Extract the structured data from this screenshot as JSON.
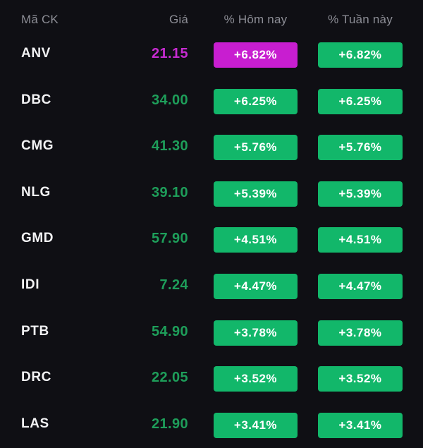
{
  "header": {
    "symbol": "Mã CK",
    "price": "Giá",
    "today": "% Hôm nay",
    "week": "% Tuần này"
  },
  "colors": {
    "up": "#12b76a",
    "up_text": "#1e9e5a",
    "ceiling": "#c81ed0",
    "ceiling_text": "#c62bd0"
  },
  "stocks": [
    {
      "symbol": "ANV",
      "price": "21.15",
      "today": "+6.82%",
      "week": "+6.82%",
      "status": "ceiling"
    },
    {
      "symbol": "DBC",
      "price": "34.00",
      "today": "+6.25%",
      "week": "+6.25%",
      "status": "up"
    },
    {
      "symbol": "CMG",
      "price": "41.30",
      "today": "+5.76%",
      "week": "+5.76%",
      "status": "up"
    },
    {
      "symbol": "NLG",
      "price": "39.10",
      "today": "+5.39%",
      "week": "+5.39%",
      "status": "up"
    },
    {
      "symbol": "GMD",
      "price": "57.90",
      "today": "+4.51%",
      "week": "+4.51%",
      "status": "up"
    },
    {
      "symbol": "IDI",
      "price": "7.24",
      "today": "+4.47%",
      "week": "+4.47%",
      "status": "up"
    },
    {
      "symbol": "PTB",
      "price": "54.90",
      "today": "+3.78%",
      "week": "+3.78%",
      "status": "up"
    },
    {
      "symbol": "DRC",
      "price": "22.05",
      "today": "+3.52%",
      "week": "+3.52%",
      "status": "up"
    },
    {
      "symbol": "LAS",
      "price": "21.90",
      "today": "+3.41%",
      "week": "+3.41%",
      "status": "up"
    }
  ]
}
